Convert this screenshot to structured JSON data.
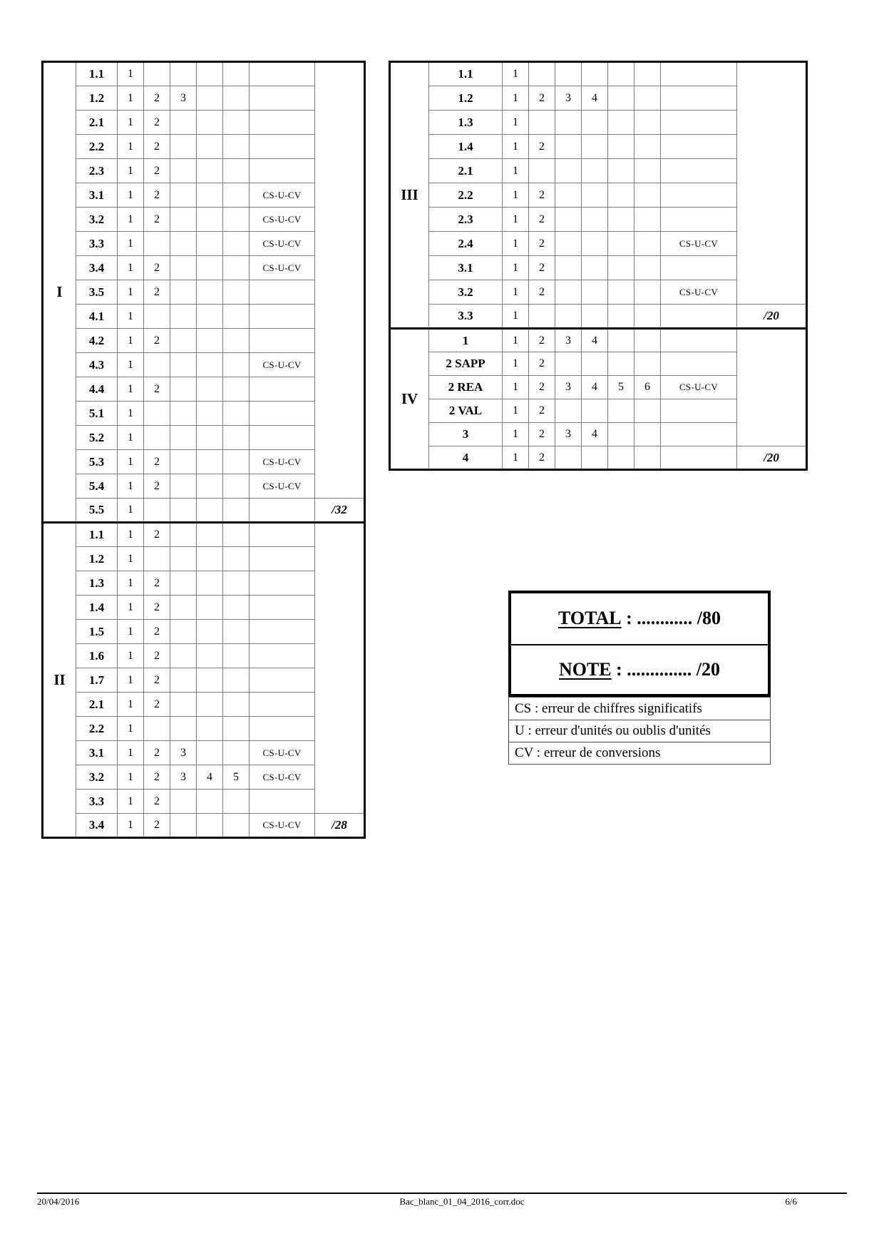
{
  "tables": {
    "left": {
      "point_cols": 5,
      "sections": [
        {
          "name": "I",
          "total": "/32",
          "rows": [
            {
              "label": "1.1",
              "points": [
                1
              ]
            },
            {
              "label": "1.2",
              "points": [
                1,
                2,
                3
              ]
            },
            {
              "label": "2.1",
              "points": [
                1,
                2
              ]
            },
            {
              "label": "2.2",
              "points": [
                1,
                2
              ]
            },
            {
              "label": "2.3",
              "points": [
                1,
                2
              ]
            },
            {
              "label": "3.1",
              "points": [
                1,
                2
              ],
              "note": "CS-U-CV"
            },
            {
              "label": "3.2",
              "points": [
                1,
                2
              ],
              "note": "CS-U-CV"
            },
            {
              "label": "3.3",
              "points": [
                1
              ],
              "note": "CS-U-CV"
            },
            {
              "label": "3.4",
              "points": [
                1,
                2
              ],
              "note": "CS-U-CV"
            },
            {
              "label": "3.5",
              "points": [
                1,
                2
              ]
            },
            {
              "label": "4.1",
              "points": [
                1
              ]
            },
            {
              "label": "4.2",
              "points": [
                1,
                2
              ]
            },
            {
              "label": "4.3",
              "points": [
                1
              ],
              "note": "CS-U-CV"
            },
            {
              "label": "4.4",
              "points": [
                1,
                2
              ]
            },
            {
              "label": "5.1",
              "points": [
                1
              ]
            },
            {
              "label": "5.2",
              "points": [
                1
              ]
            },
            {
              "label": "5.3",
              "points": [
                1,
                2
              ],
              "note": "CS-U-CV"
            },
            {
              "label": "5.4",
              "points": [
                1,
                2
              ],
              "note": "CS-U-CV"
            },
            {
              "label": "5.5",
              "points": [
                1
              ]
            }
          ]
        },
        {
          "name": "II",
          "total": "/28",
          "rows": [
            {
              "label": "1.1",
              "points": [
                1,
                2
              ]
            },
            {
              "label": "1.2",
              "points": [
                1
              ]
            },
            {
              "label": "1.3",
              "points": [
                1,
                2
              ]
            },
            {
              "label": "1.4",
              "points": [
                1,
                2
              ]
            },
            {
              "label": "1.5",
              "points": [
                1,
                2
              ]
            },
            {
              "label": "1.6",
              "points": [
                1,
                2
              ]
            },
            {
              "label": "1.7",
              "points": [
                1,
                2
              ]
            },
            {
              "label": "2.1",
              "points": [
                1,
                2
              ]
            },
            {
              "label": "2.2",
              "points": [
                1
              ]
            },
            {
              "label": "3.1",
              "points": [
                1,
                2,
                3
              ],
              "note": "CS-U-CV"
            },
            {
              "label": "3.2",
              "points": [
                1,
                2,
                3,
                4,
                5
              ],
              "note": "CS-U-CV"
            },
            {
              "label": "3.3",
              "points": [
                1,
                2
              ]
            },
            {
              "label": "3.4",
              "points": [
                1,
                2
              ],
              "note": "CS-U-CV"
            }
          ]
        }
      ]
    },
    "right": {
      "point_cols": 6,
      "sections": [
        {
          "name": "III",
          "total": "/20",
          "rows": [
            {
              "label": "1.1",
              "points": [
                1
              ]
            },
            {
              "label": "1.2",
              "points": [
                1,
                2,
                3,
                4
              ]
            },
            {
              "label": "1.3",
              "points": [
                1
              ]
            },
            {
              "label": "1.4",
              "points": [
                1,
                2
              ]
            },
            {
              "label": "2.1",
              "points": [
                1
              ]
            },
            {
              "label": "2.2",
              "points": [
                1,
                2
              ]
            },
            {
              "label": "2.3",
              "points": [
                1,
                2
              ]
            },
            {
              "label": "2.4",
              "points": [
                1,
                2
              ],
              "note": "CS-U-CV"
            },
            {
              "label": "3.1",
              "points": [
                1,
                2
              ]
            },
            {
              "label": "3.2",
              "points": [
                1,
                2
              ],
              "note": "CS-U-CV"
            },
            {
              "label": "3.3",
              "points": [
                1
              ]
            }
          ]
        },
        {
          "name": "IV",
          "total": "/20",
          "rows": [
            {
              "label": "1",
              "points": [
                1,
                2,
                3,
                4
              ]
            },
            {
              "label": "2 SAPP",
              "points": [
                1,
                2
              ]
            },
            {
              "label": "2 REA",
              "points": [
                1,
                2,
                3,
                4,
                5,
                6
              ],
              "note": "CS-U-CV"
            },
            {
              "label": "2 VAL",
              "points": [
                1,
                2
              ]
            },
            {
              "label": "3",
              "points": [
                1,
                2,
                3,
                4
              ]
            },
            {
              "label": "4",
              "points": [
                1,
                2
              ]
            }
          ]
        }
      ]
    }
  },
  "summary": {
    "total_label": "TOTAL",
    "total_rest": " : ............ /80",
    "note_label": "NOTE",
    "note_rest": " : .............. /20"
  },
  "legend": {
    "rows": [
      "CS : erreur de chiffres significatifs",
      "U : erreur d'unités ou oublis d'unités",
      "CV : erreur de conversions"
    ]
  },
  "footer": {
    "date": "20/04/2016",
    "filename": "Bac_blanc_01_04_2016_corr.doc",
    "page": "6/6"
  }
}
